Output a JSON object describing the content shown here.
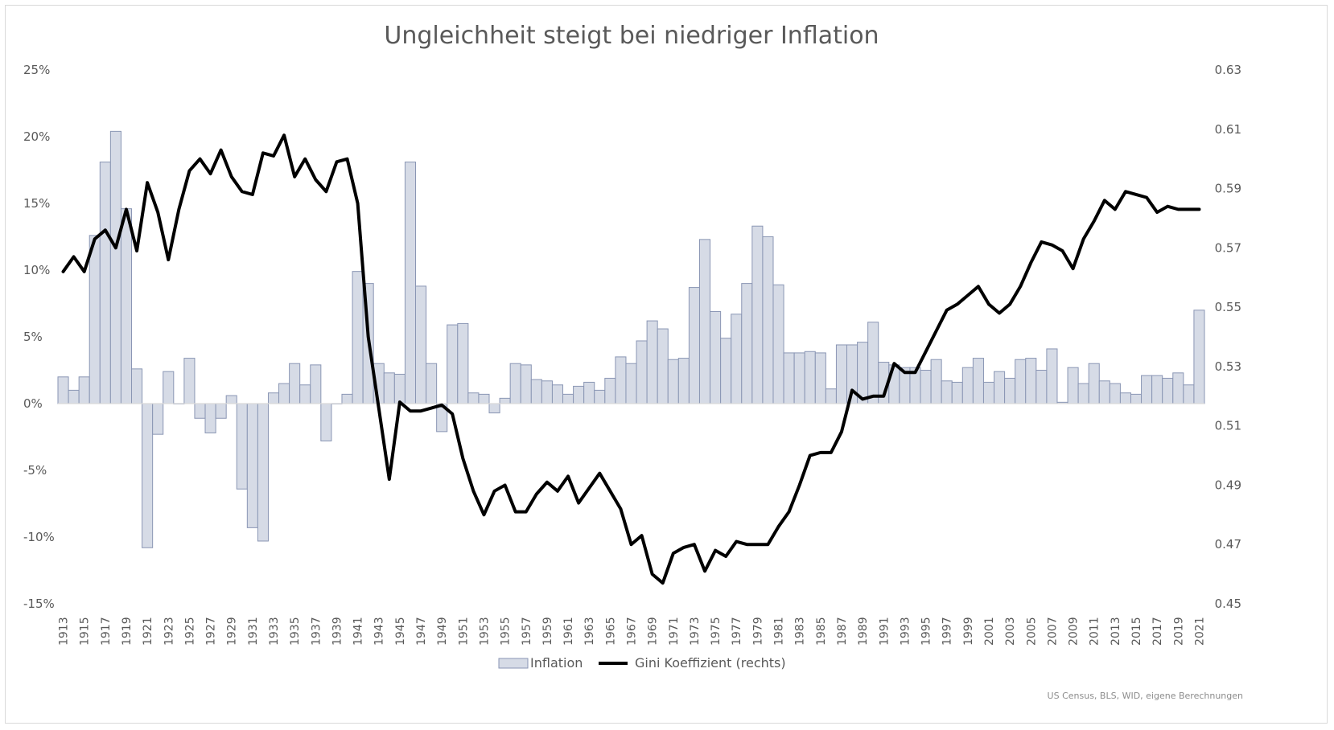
{
  "chart_data": {
    "type": "bar",
    "title": "Ungleichheit steigt bei niedriger Inflation",
    "source": "US Census, BLS, WID, eigene Berechnungen",
    "colors": {
      "bar_fill": "#d6dbe6",
      "bar_stroke": "#8a96b4",
      "line": "#000000",
      "zero_axis": "#d9d9d9"
    },
    "legend": {
      "position": "bottom",
      "entries": [
        {
          "name": "Inflation",
          "kind": "bar"
        },
        {
          "name": "Gini Koeffizient (rechts)",
          "kind": "line"
        }
      ]
    },
    "y_left": {
      "min": -15,
      "max": 25,
      "ticks": [
        "25%",
        "20%",
        "15%",
        "10%",
        "5%",
        "0%",
        "-5%",
        "-10%",
        "-15%"
      ],
      "tick_values": [
        25,
        20,
        15,
        10,
        5,
        0,
        -5,
        -10,
        -15
      ]
    },
    "y_right": {
      "min": 0.45,
      "max": 0.63,
      "ticks": [
        "0.63",
        "0.61",
        "0.59",
        "0.57",
        "0.55",
        "0.53",
        "0.51",
        "0.49",
        "0.47",
        "0.45"
      ],
      "tick_values": [
        0.63,
        0.61,
        0.59,
        0.57,
        0.55,
        0.53,
        0.51,
        0.49,
        0.47,
        0.45
      ]
    },
    "x_tick_labels": [
      "1913",
      "1915",
      "1917",
      "1919",
      "1921",
      "1923",
      "1925",
      "1927",
      "1929",
      "1931",
      "1933",
      "1935",
      "1937",
      "1939",
      "1941",
      "1943",
      "1945",
      "1947",
      "1949",
      "1951",
      "1953",
      "1955",
      "1957",
      "1959",
      "1961",
      "1963",
      "1965",
      "1967",
      "1969",
      "1971",
      "1973",
      "1975",
      "1977",
      "1979",
      "1981",
      "1983",
      "1985",
      "1987",
      "1989",
      "1991",
      "1993",
      "1995",
      "1997",
      "1999",
      "2001",
      "2003",
      "2005",
      "2007",
      "2009",
      "2011",
      "2013",
      "2015",
      "2017",
      "2019",
      "2021"
    ],
    "x": [
      1913,
      1914,
      1915,
      1916,
      1917,
      1918,
      1919,
      1920,
      1921,
      1922,
      1923,
      1924,
      1925,
      1926,
      1927,
      1928,
      1929,
      1930,
      1931,
      1932,
      1933,
      1934,
      1935,
      1936,
      1937,
      1938,
      1939,
      1940,
      1941,
      1942,
      1943,
      1944,
      1945,
      1946,
      1947,
      1948,
      1949,
      1950,
      1951,
      1952,
      1953,
      1954,
      1955,
      1956,
      1957,
      1958,
      1959,
      1960,
      1961,
      1962,
      1963,
      1964,
      1965,
      1966,
      1967,
      1968,
      1969,
      1970,
      1971,
      1972,
      1973,
      1974,
      1975,
      1976,
      1977,
      1978,
      1979,
      1980,
      1981,
      1982,
      1983,
      1984,
      1985,
      1986,
      1987,
      1988,
      1989,
      1990,
      1991,
      1992,
      1993,
      1994,
      1995,
      1996,
      1997,
      1998,
      1999,
      2000,
      2001,
      2002,
      2003,
      2004,
      2005,
      2006,
      2007,
      2008,
      2009,
      2010,
      2011,
      2012,
      2013,
      2014,
      2015,
      2016,
      2017,
      2018,
      2019,
      2020,
      2021
    ],
    "series": [
      {
        "name": "Inflation",
        "type": "bar",
        "axis": "left",
        "values": [
          2.0,
          1.0,
          2.0,
          12.6,
          18.1,
          20.4,
          14.6,
          2.6,
          -10.8,
          -2.3,
          2.4,
          0.0,
          3.4,
          -1.1,
          -2.2,
          -1.1,
          0.6,
          -6.4,
          -9.3,
          -10.3,
          0.8,
          1.5,
          3.0,
          1.4,
          2.9,
          -2.8,
          0.0,
          0.7,
          9.9,
          9.0,
          3.0,
          2.3,
          2.2,
          18.1,
          8.8,
          3.0,
          -2.1,
          5.9,
          6.0,
          0.8,
          0.7,
          -0.7,
          0.4,
          3.0,
          2.9,
          1.8,
          1.7,
          1.4,
          0.7,
          1.3,
          1.6,
          1.0,
          1.9,
          3.5,
          3.0,
          4.7,
          6.2,
          5.6,
          3.3,
          3.4,
          8.7,
          12.3,
          6.9,
          4.9,
          6.7,
          9.0,
          13.3,
          12.5,
          8.9,
          3.8,
          3.8,
          3.9,
          3.8,
          1.1,
          4.4,
          4.4,
          4.6,
          6.1,
          3.1,
          2.9,
          2.7,
          2.7,
          2.5,
          3.3,
          1.7,
          1.6,
          2.7,
          3.4,
          1.6,
          2.4,
          1.9,
          3.3,
          3.4,
          2.5,
          4.1,
          0.1,
          2.7,
          1.5,
          3.0,
          1.7,
          1.5,
          0.8,
          0.7,
          2.1,
          2.1,
          1.9,
          2.3,
          1.4,
          7.0
        ]
      },
      {
        "name": "Gini Koeffizient (rechts)",
        "type": "line",
        "axis": "right",
        "values": [
          0.562,
          0.567,
          0.562,
          0.573,
          0.576,
          0.57,
          0.583,
          0.569,
          0.592,
          0.582,
          0.566,
          0.583,
          0.596,
          0.6,
          0.595,
          0.603,
          0.594,
          0.589,
          0.588,
          0.602,
          0.601,
          0.608,
          0.594,
          0.6,
          0.593,
          0.589,
          0.599,
          0.6,
          0.585,
          0.54,
          0.516,
          0.492,
          0.518,
          0.515,
          0.515,
          0.516,
          0.517,
          0.514,
          0.499,
          0.488,
          0.48,
          0.488,
          0.49,
          0.481,
          0.481,
          0.487,
          0.491,
          0.488,
          0.493,
          0.484,
          0.489,
          0.494,
          0.488,
          0.482,
          0.47,
          0.473,
          0.46,
          0.457,
          0.467,
          0.469,
          0.47,
          0.461,
          0.468,
          0.466,
          0.471,
          0.47,
          0.47,
          0.47,
          0.476,
          0.481,
          0.49,
          0.5,
          0.501,
          0.501,
          0.508,
          0.522,
          0.519,
          0.52,
          0.52,
          0.531,
          0.528,
          0.528,
          0.535,
          0.542,
          0.549,
          0.551,
          0.554,
          0.557,
          0.551,
          0.548,
          0.551,
          0.557,
          0.565,
          0.572,
          0.571,
          0.569,
          0.563,
          0.573,
          0.579,
          0.586,
          0.583,
          0.589,
          0.588,
          0.587,
          0.582,
          0.584,
          0.583,
          0.583,
          0.583
        ]
      }
    ]
  }
}
